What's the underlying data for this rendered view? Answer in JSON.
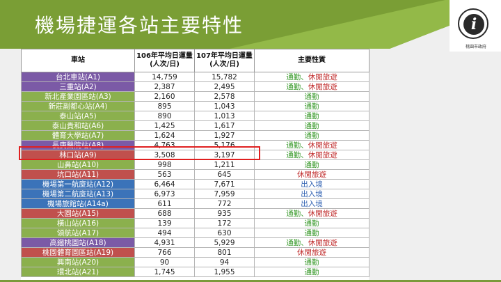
{
  "header": {
    "title": "機場捷運各站主要特性",
    "colors": {
      "banner_dark": "#6e8f2e",
      "banner_light": "#9cbf4c"
    },
    "logo": {
      "icon": "info-icon",
      "caption": "桃園市政府"
    }
  },
  "table": {
    "headers": [
      "車站",
      "106年平均日運量(人次/日)",
      "107年平均日運量(人次/日)",
      "主要性質"
    ],
    "header_lines": {
      "col2": [
        "106年平均日運量",
        "(人次/日)"
      ],
      "col3": [
        "107年平均日運量",
        "(人次/日)"
      ]
    },
    "rows": [
      {
        "station": "台北車站(A1)",
        "color": "purple",
        "v106": "14,759",
        "v107": "15,782",
        "nature": [
          {
            "t": "通勤",
            "c": "green"
          },
          {
            "t": "、",
            "c": "green"
          },
          {
            "t": "休閒旅遊",
            "c": "red"
          }
        ]
      },
      {
        "station": "三重站(A2)",
        "color": "purple",
        "v106": "2,387",
        "v107": "2,495",
        "nature": [
          {
            "t": "通勤",
            "c": "green"
          },
          {
            "t": "、",
            "c": "green"
          },
          {
            "t": "休閒旅遊",
            "c": "red"
          }
        ]
      },
      {
        "station": "新北產業園區站(A3)",
        "color": "green",
        "v106": "2,160",
        "v107": "2,578",
        "nature": [
          {
            "t": "通勤",
            "c": "green"
          }
        ]
      },
      {
        "station": "新莊副都心站(A4)",
        "color": "green",
        "v106": "895",
        "v107": "1,043",
        "nature": [
          {
            "t": "通勤",
            "c": "green"
          }
        ]
      },
      {
        "station": "泰山站(A5)",
        "color": "green",
        "v106": "890",
        "v107": "1,013",
        "nature": [
          {
            "t": "通勤",
            "c": "green"
          }
        ]
      },
      {
        "station": "泰山貴和站(A6)",
        "color": "green",
        "v106": "1,425",
        "v107": "1,617",
        "nature": [
          {
            "t": "通勤",
            "c": "green"
          }
        ]
      },
      {
        "station": "體育大學站(A7)",
        "color": "green",
        "v106": "1,624",
        "v107": "1,927",
        "nature": [
          {
            "t": "通勤",
            "c": "green"
          }
        ]
      },
      {
        "station": "長庚醫院站(A8)",
        "color": "purple",
        "v106": "4,763",
        "v107": "5,176",
        "nature": [
          {
            "t": "通勤",
            "c": "green"
          },
          {
            "t": "、",
            "c": "green"
          },
          {
            "t": "休閒旅遊",
            "c": "red"
          }
        ]
      },
      {
        "station": "林口站(A9)",
        "color": "red",
        "v106": "3,508",
        "v107": "3,197",
        "nature": [
          {
            "t": "通勤",
            "c": "green"
          },
          {
            "t": "、",
            "c": "green"
          },
          {
            "t": "休閒旅遊",
            "c": "red"
          }
        ]
      },
      {
        "station": "山鼻站(A10)",
        "color": "green",
        "v106": "998",
        "v107": "1,211",
        "nature": [
          {
            "t": "通勤",
            "c": "green"
          }
        ]
      },
      {
        "station": "坑口站(A11)",
        "color": "red",
        "v106": "563",
        "v107": "645",
        "nature": [
          {
            "t": "休閒旅遊",
            "c": "red"
          }
        ]
      },
      {
        "station": "機場第一航廈站(A12)",
        "color": "blue",
        "v106": "6,464",
        "v107": "7,671",
        "nature": [
          {
            "t": "出入境",
            "c": "blue"
          }
        ]
      },
      {
        "station": "機場第二航廈站(A13)",
        "color": "blue",
        "v106": "6,973",
        "v107": "7,959",
        "nature": [
          {
            "t": "出入境",
            "c": "blue"
          }
        ]
      },
      {
        "station": "機場旅館站(A14a)",
        "color": "blue",
        "v106": "611",
        "v107": "772",
        "nature": [
          {
            "t": "出入境",
            "c": "blue"
          }
        ]
      },
      {
        "station": "大園站(A15)",
        "color": "red",
        "v106": "688",
        "v107": "935",
        "nature": [
          {
            "t": "通勤",
            "c": "green"
          },
          {
            "t": "、",
            "c": "green"
          },
          {
            "t": "休閒旅遊",
            "c": "red"
          }
        ]
      },
      {
        "station": "橫山站(A16)",
        "color": "green",
        "v106": "139",
        "v107": "172",
        "nature": [
          {
            "t": "通勤",
            "c": "green"
          }
        ]
      },
      {
        "station": "領航站(A17)",
        "color": "green",
        "v106": "494",
        "v107": "630",
        "nature": [
          {
            "t": "通勤",
            "c": "green"
          }
        ]
      },
      {
        "station": "高鐵桃園站(A18)",
        "color": "purple",
        "v106": "4,931",
        "v107": "5,929",
        "nature": [
          {
            "t": "通勤",
            "c": "green"
          },
          {
            "t": "、",
            "c": "green"
          },
          {
            "t": "休閒旅遊",
            "c": "red"
          }
        ]
      },
      {
        "station": "桃園體育園區站(A19)",
        "color": "red",
        "v106": "766",
        "v107": "801",
        "nature": [
          {
            "t": "休閒旅遊",
            "c": "red"
          }
        ]
      },
      {
        "station": "興南站(A20)",
        "color": "green",
        "v106": "90",
        "v107": "94",
        "nature": [
          {
            "t": "通勤",
            "c": "green"
          }
        ]
      },
      {
        "station": "環北站(A21)",
        "color": "green",
        "v106": "1,745",
        "v107": "1,955",
        "nature": [
          {
            "t": "通勤",
            "c": "green"
          }
        ]
      }
    ],
    "highlighted_station": "林口站(A9)"
  }
}
